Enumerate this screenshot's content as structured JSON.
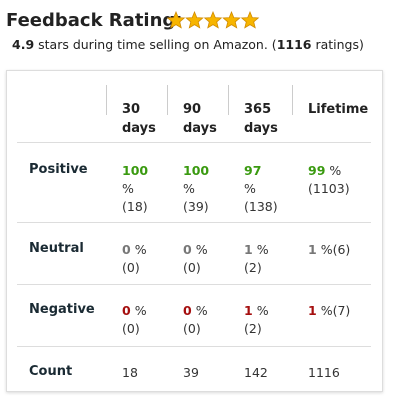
{
  "header": {
    "title": "Feedback Rating:",
    "rating": "4.9",
    "summary": " stars during time selling on Amazon. (",
    "count": "1116",
    "tail": " ratings)"
  },
  "table": {
    "columns": [
      "30 days",
      "90 days",
      "365 days",
      "Lifetime"
    ],
    "rows": [
      {
        "label": "Positive",
        "color": "#3a9a10",
        "cells": [
          {
            "pct": "100",
            "sign": "%",
            "count": "(18)"
          },
          {
            "pct": "100",
            "sign": "%",
            "count": "(39)"
          },
          {
            "pct": "97",
            "sign": "%",
            "count": "(138)"
          },
          {
            "pct": "99",
            "sign": "%",
            "count": "(1103)"
          }
        ]
      },
      {
        "label": "Neutral",
        "color": "#777777",
        "cells": [
          {
            "pct": "0",
            "sign": "%",
            "count": "(0)"
          },
          {
            "pct": "0",
            "sign": "%",
            "count": "(0)"
          },
          {
            "pct": "1",
            "sign": "%",
            "count": "(2)"
          },
          {
            "pct": "1",
            "sign": "%",
            "count": "(6)"
          }
        ]
      },
      {
        "label": "Negative",
        "color": "#a50f0f",
        "cells": [
          {
            "pct": "0",
            "sign": "%",
            "count": "(0)"
          },
          {
            "pct": "0",
            "sign": "%",
            "count": "(0)"
          },
          {
            "pct": "1",
            "sign": "%",
            "count": "(2)"
          },
          {
            "pct": "1",
            "sign": "%",
            "count": "(7)"
          }
        ]
      },
      {
        "label": "Count",
        "cells": [
          "18",
          "39",
          "142",
          "1116"
        ]
      }
    ]
  }
}
